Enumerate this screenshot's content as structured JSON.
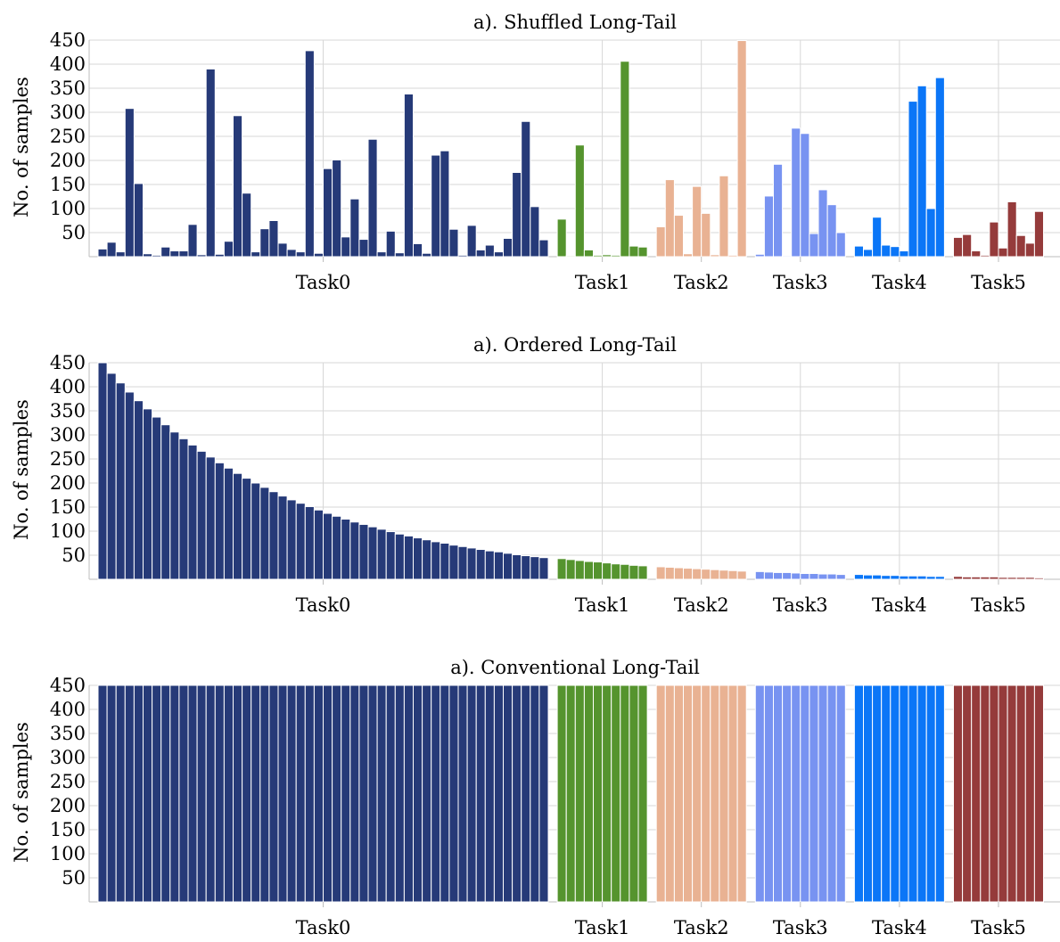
{
  "figure": {
    "ylabel": "No. of samples",
    "yticks": [
      50,
      100,
      150,
      200,
      250,
      300,
      350,
      400,
      450
    ],
    "ylim": [
      0,
      450
    ],
    "tasks": [
      "Task0",
      "Task1",
      "Task2",
      "Task3",
      "Task4",
      "Task5"
    ],
    "task_colors": [
      "#263a78",
      "#55942e",
      "#e9b293",
      "#7893f1",
      "#0b76f7",
      "#953b3b"
    ]
  },
  "chart_data": [
    {
      "type": "bar",
      "title": "a). Shuffled Long-Tail",
      "ylabel": "No. of samples",
      "ylim": [
        0,
        450
      ],
      "grid": true,
      "series": [
        {
          "name": "Task0",
          "values": [
            16,
            30,
            10,
            308,
            152,
            6,
            3,
            20,
            12,
            12,
            67,
            4,
            390,
            5,
            32,
            293,
            132,
            10,
            58,
            75,
            28,
            15,
            10,
            428,
            7,
            183,
            201,
            41,
            120,
            36,
            244,
            10,
            53,
            8,
            338,
            27,
            7,
            211,
            220,
            57,
            3,
            65,
            14,
            24,
            10,
            38,
            175,
            281,
            104,
            35
          ]
        },
        {
          "name": "Task1",
          "values": [
            78,
            2,
            232,
            14,
            3,
            4,
            3,
            406,
            22,
            20
          ]
        },
        {
          "name": "Task2",
          "values": [
            62,
            160,
            86,
            6,
            146,
            90,
            4,
            168,
            3,
            449
          ]
        },
        {
          "name": "Task3",
          "values": [
            5,
            126,
            192,
            2,
            267,
            256,
            48,
            139,
            108,
            50
          ]
        },
        {
          "name": "Task4",
          "values": [
            22,
            15,
            82,
            24,
            21,
            12,
            323,
            355,
            100,
            372
          ]
        },
        {
          "name": "Task5",
          "values": [
            40,
            46,
            12,
            3,
            72,
            18,
            114,
            44,
            28,
            94
          ]
        }
      ]
    },
    {
      "type": "bar",
      "title": "a). Ordered Long-Tail",
      "ylabel": "No. of samples",
      "ylim": [
        0,
        450
      ],
      "grid": true,
      "series": [
        {
          "name": "Task0",
          "values": [
            450,
            428,
            408,
            389,
            371,
            354,
            337,
            321,
            306,
            292,
            279,
            266,
            254,
            242,
            231,
            220,
            210,
            200,
            191,
            182,
            173,
            165,
            158,
            151,
            144,
            137,
            131,
            125,
            119,
            114,
            109,
            104,
            99,
            94,
            90,
            86,
            82,
            78,
            75,
            71,
            68,
            65,
            62,
            59,
            57,
            54,
            51,
            49,
            47,
            45
          ]
        },
        {
          "name": "Task1",
          "values": [
            43,
            41,
            39,
            37,
            36,
            34,
            32,
            31,
            29,
            28
          ]
        },
        {
          "name": "Task2",
          "values": [
            26,
            25,
            24,
            23,
            22,
            21,
            20,
            19,
            18,
            17
          ]
        },
        {
          "name": "Task3",
          "values": [
            16,
            15,
            14,
            14,
            13,
            12,
            12,
            11,
            11,
            10
          ]
        },
        {
          "name": "Task4",
          "values": [
            10,
            9,
            9,
            8,
            8,
            7,
            7,
            7,
            6,
            6
          ]
        },
        {
          "name": "Task5",
          "values": [
            6,
            5,
            5,
            5,
            5,
            4,
            4,
            4,
            4,
            3
          ]
        }
      ]
    },
    {
      "type": "bar",
      "title": "a). Conventional Long-Tail",
      "ylabel": "No. of samples",
      "ylim": [
        0,
        450
      ],
      "grid": true,
      "series": [
        {
          "name": "Task0",
          "values": [
            450,
            450,
            450,
            450,
            450,
            450,
            450,
            450,
            450,
            450,
            450,
            450,
            450,
            450,
            450,
            450,
            450,
            450,
            450,
            450,
            450,
            450,
            450,
            450,
            450,
            450,
            450,
            450,
            450,
            450,
            450,
            450,
            450,
            450,
            450,
            450,
            450,
            450,
            450,
            450,
            450,
            450,
            450,
            450,
            450,
            450,
            450,
            450,
            450,
            450
          ]
        },
        {
          "name": "Task1",
          "values": [
            450,
            450,
            450,
            450,
            450,
            450,
            450,
            450,
            450,
            450
          ]
        },
        {
          "name": "Task2",
          "values": [
            450,
            450,
            450,
            450,
            450,
            450,
            450,
            450,
            450,
            450
          ]
        },
        {
          "name": "Task3",
          "values": [
            450,
            450,
            450,
            450,
            450,
            450,
            450,
            450,
            450,
            450
          ]
        },
        {
          "name": "Task4",
          "values": [
            450,
            450,
            450,
            450,
            450,
            450,
            450,
            450,
            450,
            450
          ]
        },
        {
          "name": "Task5",
          "values": [
            450,
            450,
            450,
            450,
            450,
            450,
            450,
            450,
            450,
            450
          ]
        }
      ]
    }
  ]
}
